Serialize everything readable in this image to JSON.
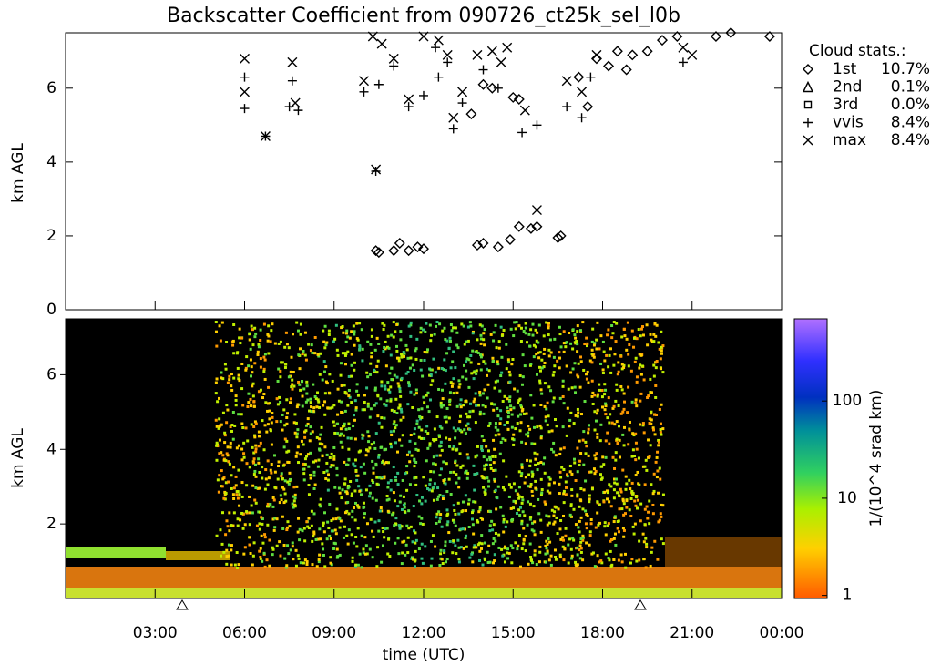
{
  "chart_data": {
    "type": "scatter",
    "title": "Backscatter Coefficient from 090726_ct25k_sel_l0b",
    "xlabel": "time (UTC)",
    "ylabel": "km AGL",
    "xlim": [
      0,
      24
    ],
    "xticks": [
      {
        "value": 3,
        "label": "03:00"
      },
      {
        "value": 6,
        "label": "06:00"
      },
      {
        "value": 9,
        "label": "09:00"
      },
      {
        "value": 12,
        "label": "12:00"
      },
      {
        "value": 15,
        "label": "15:00"
      },
      {
        "value": 18,
        "label": "18:00"
      },
      {
        "value": 21,
        "label": "21:00"
      },
      {
        "value": 24,
        "label": "00:00"
      }
    ],
    "ylim": [
      0,
      7.5
    ],
    "yticks": [
      0,
      2,
      4,
      6
    ],
    "legend_title": "Cloud stats.:",
    "color": "#000000",
    "series": [
      {
        "name": "1st",
        "symbol": "diamond",
        "stat": "10.7%",
        "x": [
          10.4,
          10.5,
          11.0,
          11.2,
          11.5,
          11.8,
          12.0,
          13.8,
          14.0,
          14.5,
          14.9,
          15.2,
          15.6,
          15.8,
          16.5,
          16.6,
          13.6,
          14.0,
          14.3,
          15.0,
          15.2,
          17.5,
          18.2,
          18.5,
          19.0,
          19.5,
          20.0,
          20.5,
          21.8,
          22.3,
          23.6,
          17.2,
          17.8,
          18.8
        ],
        "values": [
          1.6,
          1.55,
          1.6,
          1.8,
          1.6,
          1.7,
          1.65,
          1.75,
          1.8,
          1.7,
          1.9,
          2.25,
          2.2,
          2.25,
          1.95,
          2.0,
          5.3,
          6.1,
          6.0,
          5.75,
          5.7,
          5.5,
          6.6,
          7.0,
          6.9,
          7.0,
          7.3,
          7.4,
          7.4,
          7.5,
          7.4,
          6.3,
          6.8,
          6.5
        ]
      },
      {
        "name": "2nd",
        "symbol": "triangle",
        "stat": "0.1%",
        "x": [],
        "values": []
      },
      {
        "name": "3rd",
        "symbol": "square",
        "stat": "0.0%",
        "x": [],
        "values": []
      },
      {
        "name": "vvis",
        "symbol": "plus",
        "stat": "8.4%",
        "x": [
          6.0,
          6.0,
          7.5,
          7.6,
          7.8,
          6.7,
          10.4,
          10.0,
          10.5,
          11.5,
          12.0,
          12.5,
          12.8,
          13.0,
          13.3,
          14.0,
          14.5,
          15.3,
          15.8,
          16.8,
          17.3,
          17.6,
          20.7,
          12.4,
          11.0
        ],
        "values": [
          5.45,
          6.3,
          5.5,
          6.2,
          5.4,
          4.7,
          3.75,
          5.9,
          6.1,
          5.5,
          5.8,
          6.3,
          6.7,
          4.9,
          5.6,
          6.5,
          6.0,
          4.8,
          5.0,
          5.5,
          5.2,
          6.3,
          6.7,
          7.1,
          6.6
        ]
      },
      {
        "name": "max",
        "symbol": "cross",
        "stat": "8.4%",
        "x": [
          6.0,
          6.0,
          7.6,
          7.7,
          6.7,
          10.4,
          10.0,
          10.3,
          10.6,
          11.0,
          11.5,
          12.0,
          12.5,
          13.0,
          13.3,
          13.8,
          14.3,
          14.8,
          15.4,
          15.8,
          16.8,
          17.3,
          17.8,
          20.7,
          21.0,
          12.8,
          14.6
        ],
        "values": [
          5.9,
          6.8,
          6.7,
          5.6,
          4.7,
          3.8,
          6.2,
          7.4,
          7.2,
          6.8,
          5.7,
          7.4,
          7.3,
          5.2,
          5.9,
          6.9,
          7.0,
          7.1,
          5.4,
          2.7,
          6.2,
          5.9,
          6.9,
          7.1,
          6.9,
          6.9,
          6.7
        ]
      }
    ],
    "bottom_panel": {
      "ylabel": "km AGL",
      "ylim": [
        0,
        7.5
      ],
      "yticks": [
        2,
        4,
        6
      ]
    },
    "colorbar": {
      "label": "1/(10^4 srad km)",
      "log": true,
      "lim": [
        0.93,
        700
      ],
      "ticks": [
        1,
        10,
        100
      ]
    }
  }
}
